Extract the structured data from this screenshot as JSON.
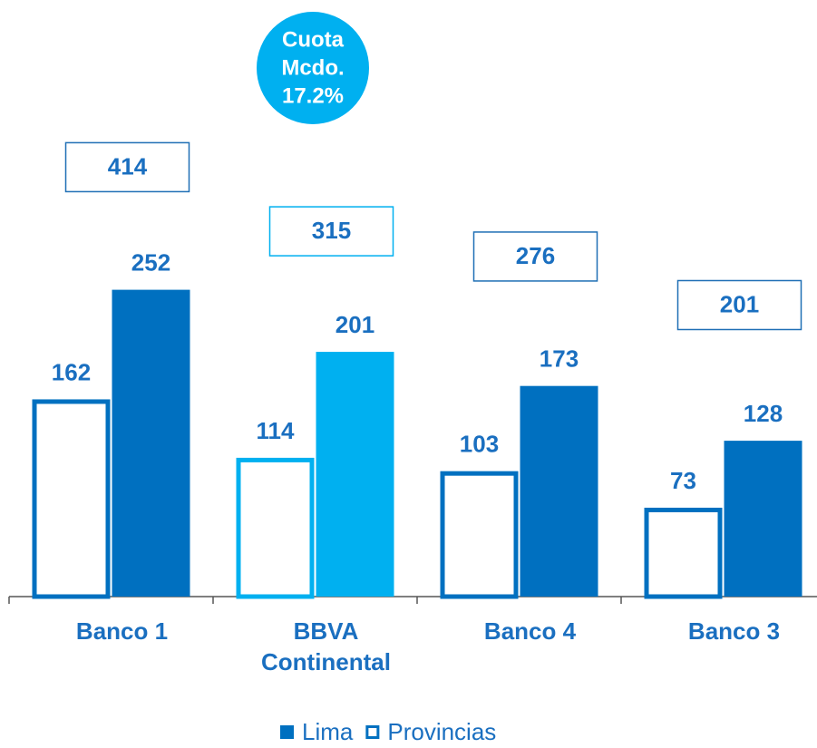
{
  "chart_data": {
    "type": "bar",
    "categories": [
      "Banco 1",
      "BBVA Continental",
      "Banco 4",
      "Banco 3"
    ],
    "series": [
      {
        "name": "Provincias",
        "color": "#0070c0",
        "values": [
          162,
          114,
          103,
          73
        ]
      },
      {
        "name": "Lima",
        "color": "#0070c0",
        "values": [
          252,
          201,
          173,
          128
        ]
      }
    ],
    "totals": [
      414,
      315,
      276,
      201
    ],
    "highlight_category": "BBVA Continental",
    "highlight_color": "#00b0f0",
    "annotation": [
      "Cuota",
      "Mcdo.",
      "17.2%"
    ],
    "ylim": [
      0,
      490
    ],
    "legend": "bottom"
  }
}
